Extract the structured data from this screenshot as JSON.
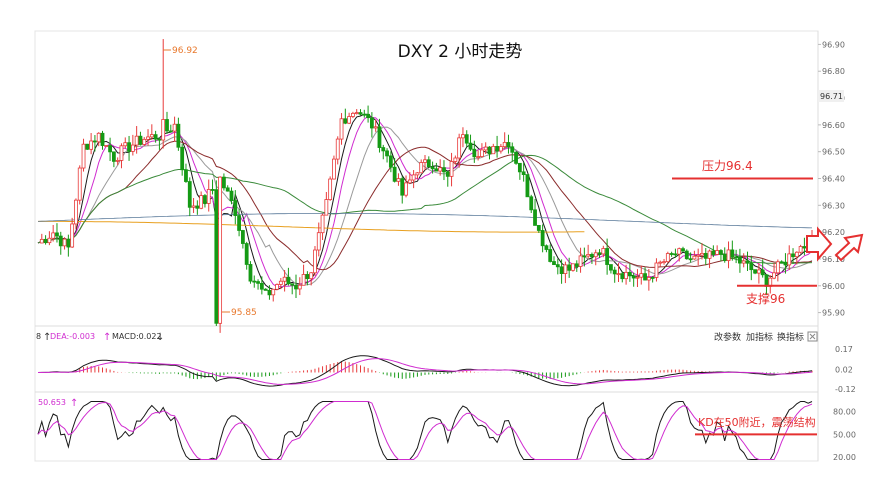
{
  "chart_data": {
    "type": "candlestick",
    "title": "DXY 2 小时走势",
    "y_ticks": [
      "96.90",
      "96.80",
      "96.70",
      "96.60",
      "96.50",
      "96.40",
      "96.30",
      "96.20",
      "96.10",
      "96.00",
      "95.90"
    ],
    "ylim": [
      95.85,
      96.95
    ],
    "current_price": "96.71",
    "high_label": "96.92",
    "low_label": "95.85",
    "resistance": {
      "label": "压力96.4",
      "value": 96.4
    },
    "support": {
      "label": "支撑96",
      "value": 96.0
    },
    "macd": {
      "header_pre": "8",
      "dea_label": "DEA:-0.003",
      "macd_label": "MACD:0.022",
      "y_ticks": [
        "0.17",
        "0.02",
        "-0.12"
      ],
      "ylim": [
        -0.14,
        0.19
      ]
    },
    "kdj": {
      "header": "50.653",
      "y_ticks": [
        "80.00",
        "50.00",
        "20.00"
      ],
      "ylim": [
        15,
        95
      ],
      "annotation": "KD在50附近，震荡结构",
      "level": 50
    },
    "toolbar": [
      "改参数",
      "加指标",
      "换指标"
    ],
    "colors": {
      "up": "#e83a3a",
      "down": "#159a15",
      "ma_fast": "#1a1a1a",
      "ma_magenta": "#d02cd0",
      "ma_gray": "#9a9a9a",
      "ma_brown": "#8b2c2c",
      "ma_green": "#3a8a3a",
      "ma_orange": "#e8a020",
      "ma_blue": "#5a7a9a",
      "annotation": "#e53030",
      "label": "#e8782c",
      "axis_text": "#666666"
    }
  }
}
